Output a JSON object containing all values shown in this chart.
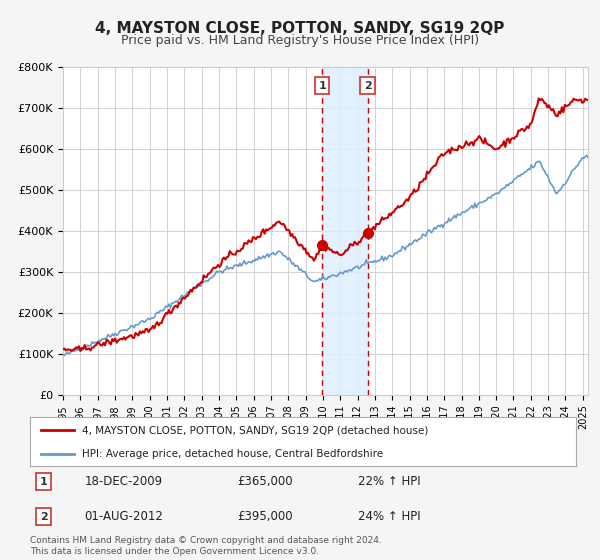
{
  "title": "4, MAYSTON CLOSE, POTTON, SANDY, SG19 2QP",
  "subtitle": "Price paid vs. HM Land Registry's House Price Index (HPI)",
  "legend_label_red": "4, MAYSTON CLOSE, POTTON, SANDY, SG19 2QP (detached house)",
  "legend_label_blue": "HPI: Average price, detached house, Central Bedfordshire",
  "transaction1_label": "1",
  "transaction1_date": "18-DEC-2009",
  "transaction1_price": "£365,000",
  "transaction1_hpi": "22% ↑ HPI",
  "transaction1_x": 2009.96,
  "transaction1_y": 365000,
  "transaction2_label": "2",
  "transaction2_date": "01-AUG-2012",
  "transaction2_price": "£395,000",
  "transaction2_hpi": "24% ↑ HPI",
  "transaction2_x": 2012.58,
  "transaction2_y": 395000,
  "footer": "Contains HM Land Registry data © Crown copyright and database right 2024.\nThis data is licensed under the Open Government Licence v3.0.",
  "ylim": [
    0,
    800000
  ],
  "xlim_start": 1995.0,
  "xlim_end": 2025.3,
  "background_color": "#f5f5f5",
  "plot_background_color": "#ffffff",
  "red_color": "#cc0000",
  "blue_color": "#6699cc",
  "shade_color": "#ddeeff",
  "vline_color": "#cc0000",
  "title_fontsize": 11,
  "subtitle_fontsize": 9,
  "ytick_labels": [
    "£0",
    "£100K",
    "£200K",
    "£300K",
    "£400K",
    "£500K",
    "£600K",
    "£700K",
    "£800K"
  ],
  "ytick_values": [
    0,
    100000,
    200000,
    300000,
    400000,
    500000,
    600000,
    700000,
    800000
  ]
}
